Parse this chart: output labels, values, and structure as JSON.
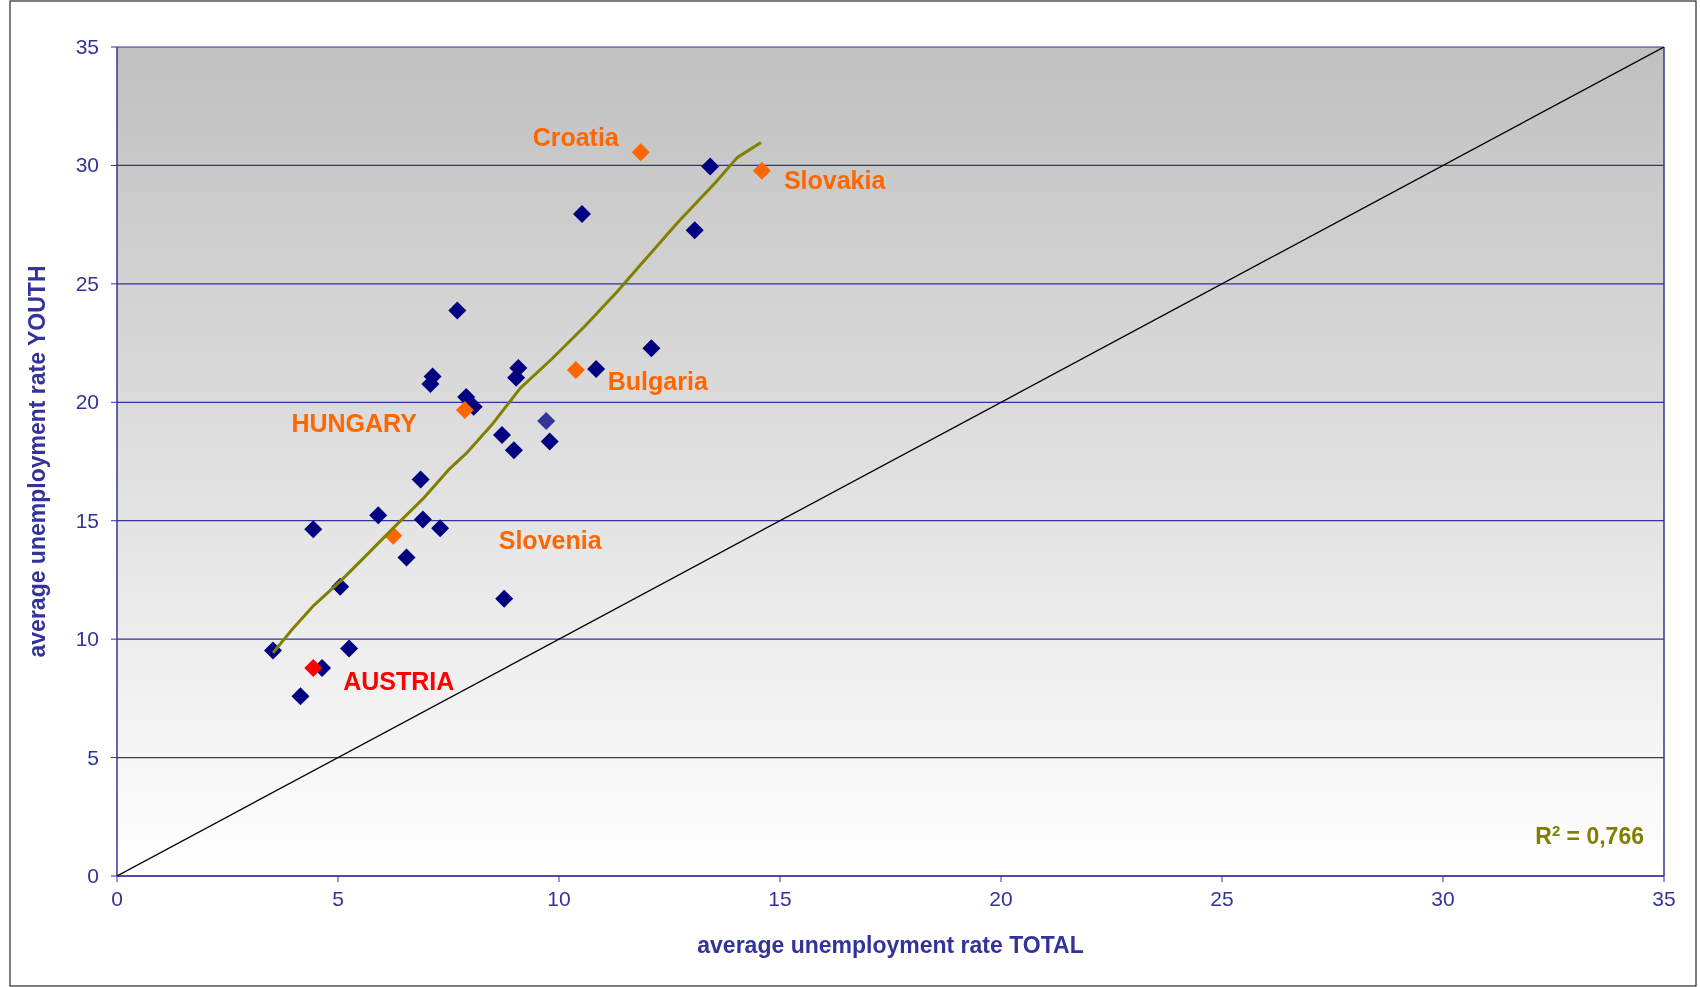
{
  "chart_data": {
    "type": "scatter",
    "xlabel": "average unemployment rate TOTAL",
    "ylabel": "average unemployment rate YOUTH",
    "xlim": [
      0,
      35
    ],
    "xticks": [
      0,
      5,
      10,
      15,
      20,
      25,
      30,
      35
    ],
    "ylim": [
      0,
      35
    ],
    "yticks": [
      0,
      5,
      10,
      15,
      20,
      25,
      30,
      35
    ],
    "grid": "y",
    "marker": "diamond",
    "series": [
      {
        "color": "#000080",
        "x": [
          13.42,
          10.52,
          13.07,
          7.7,
          12.09,
          10.84,
          9.08,
          9.03,
          7.14,
          7.09,
          7.9,
          8.07,
          8.71,
          8.98,
          9.79,
          6.87,
          5.91,
          6.92,
          7.31,
          4.44,
          6.55,
          5.05,
          8.76,
          3.53,
          5.25,
          4.64,
          4.15
        ],
        "values": [
          29.96,
          27.95,
          27.26,
          23.88,
          22.28,
          21.41,
          21.45,
          21.04,
          21.09,
          20.77,
          20.22,
          19.81,
          18.62,
          17.98,
          18.34,
          16.74,
          15.23,
          15.05,
          14.68,
          14.64,
          13.45,
          12.21,
          11.71,
          9.52,
          9.61,
          8.78,
          7.59
        ]
      },
      {
        "color": "#333399",
        "x": [
          9.71
        ],
        "values": [
          19.21
        ]
      },
      {
        "color": "#ff6600",
        "x": [
          11.85,
          14.59,
          10.38,
          7.87,
          6.25
        ],
        "values": [
          30.56,
          29.78,
          21.36,
          19.67,
          14.36
        ]
      },
      {
        "color": "#ff0000",
        "x": [
          4.44
        ],
        "values": [
          8.78
        ]
      },
      {
        "type": "line",
        "marker": "none",
        "color": "#808000",
        "x": [
          3.53,
          3.97,
          4.46,
          5.08,
          5.69,
          6.3,
          6.92,
          7.53,
          7.9,
          8.51,
          9.12,
          9.86,
          10.6,
          11.33,
          11.82,
          12.68,
          13.54,
          14.03,
          14.57
        ],
        "values": [
          9.42,
          10.43,
          11.44,
          12.49,
          13.63,
          14.78,
          15.92,
          17.2,
          17.84,
          19.12,
          20.59,
          21.87,
          23.24,
          24.7,
          25.75,
          27.58,
          29.28,
          30.33,
          30.97
        ]
      },
      {
        "type": "line",
        "marker": "none",
        "color": "#000000",
        "x": [
          0,
          35
        ],
        "values": [
          0,
          35
        ]
      }
    ],
    "annotations": [
      {
        "text": "Croatia",
        "x": 11.85,
        "y": 30.56
      },
      {
        "text": "Slovakia",
        "x": 14.59,
        "y": 29.78
      },
      {
        "text": "Bulgaria",
        "x": 10.38,
        "y": 21.36
      },
      {
        "text": "HUNGARY",
        "x": 7.87,
        "y": 19.67
      },
      "Slovenia",
      {
        "text": "AUSTRIA",
        "x": 4.44,
        "y": 8.78
      },
      "R$^{2}$ = 0,766"
    ]
  }
}
